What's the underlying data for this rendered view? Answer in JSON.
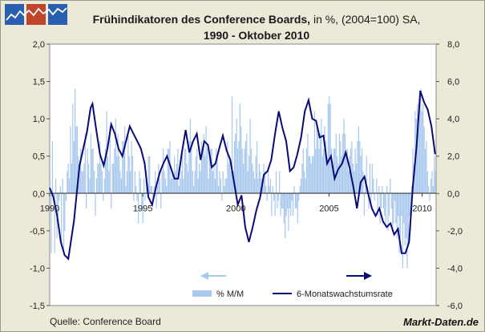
{
  "title_bold": "Frühindikatoren des Conference Boards,",
  "title_rest": " in %, (2004=100) SA,",
  "subtitle": "1990 - Oktober 2010",
  "source": "Quelle: Conference Board",
  "brand": "Markt-Daten.de",
  "colors": {
    "bar": "#a8c8ee",
    "line": "#0a0a78",
    "arrow_left": "#a8c8ee",
    "arrow_right": "#0a0a78",
    "plot_bg": "#ffffff",
    "logo_blue": "#2a5fb0",
    "logo_red": "#c0452b"
  },
  "chart_data": {
    "type": "bar+line",
    "x_start": 1990,
    "x_end": 2010.75,
    "xticks": [
      "1990",
      "1995",
      "2000",
      "2005",
      "2010"
    ],
    "yleft": {
      "ticks": [
        "2,0",
        "1,5",
        "1,0",
        "0,5",
        "0,0",
        "-0,5",
        "-1,0",
        "-1,5"
      ],
      "lim": [
        -1.5,
        2.0
      ]
    },
    "yright": {
      "ticks": [
        "8,0",
        "6,0",
        "4,0",
        "2,0",
        "0,0",
        "-2,0",
        "-4,0",
        "-6,0"
      ],
      "lim": [
        -6.0,
        8.0
      ]
    },
    "legend": [
      "% M/M",
      "6-Monatswachstumsrate"
    ],
    "series": [
      {
        "name": "% M/M",
        "axis": "left",
        "type": "bar",
        "values": [
          0.2,
          -0.8,
          0.7,
          -0.1,
          -0.8,
          0.2,
          -0.6,
          -0.3,
          -0.1,
          0.1,
          -0.7,
          0.2,
          -0.8,
          -0.5,
          -0.1,
          0.3,
          0.4,
          0.2,
          0.9,
          0.4,
          1.2,
          0.7,
          1.4,
          0.9,
          0.9,
          0.5,
          0.4,
          0.6,
          0.3,
          0.3,
          0.4,
          0.8,
          -0.2,
          0.6,
          0.4,
          0.2,
          0.8,
          0.6,
          0.6,
          0.3,
          -0.3,
          0.2,
          0.4,
          0.4,
          0.7,
          0.4,
          0.3,
          -0.1,
          0.2,
          0.6,
          1.1,
          0.5,
          0.3,
          0.9,
          -0.2,
          0.4,
          0.4,
          0.6,
          1.0,
          0.5,
          0.8,
          0.5,
          0.3,
          0.2,
          0.7,
          0.7,
          0.9,
          0.1,
          0.3,
          0.8,
          0.5,
          0.3,
          0.7,
          0.5,
          -0.1,
          0.3,
          0.1,
          -0.1,
          -0.4,
          0.3,
          0.2,
          -0.2,
          -0.4,
          0.2,
          -0.1,
          0.3,
          0.1,
          0.5,
          0.5,
          0.1,
          0.1,
          -0.1,
          0.1,
          0.3,
          -0.2,
          0.1,
          0.4,
          0.2,
          -0.2,
          0.3,
          0.6,
          0.3,
          0.2,
          0.1,
          0.6,
          0.6,
          0.7,
          0.2,
          0.3,
          0.2,
          0.5,
          0.3,
          0.4,
          0.6,
          0.1,
          0.2,
          0.3,
          0.6,
          0.2,
          0.6,
          0.6,
          0.4,
          0.3,
          0.7,
          1.0,
          0.7,
          0.3,
          0.1,
          0.3,
          0.5,
          0.6,
          0.2,
          0.4,
          0.3,
          0.7,
          0.6,
          0.8,
          0.5,
          0.9,
          0.6,
          0.2,
          0.5,
          0.6,
          0.6,
          0.3,
          0.4,
          0.2,
          0.6,
          0.5,
          0.1,
          0.3,
          0.2,
          -0.1,
          0.3,
          0.1,
          0.2,
          0.2,
          0.7,
          0.4,
          0.5,
          0.3,
          1.3,
          0.3,
          0.7,
          0.8,
          1.0,
          0.6,
          0.7,
          1.2,
          0.9,
          0.6,
          0.4,
          0.6,
          0.7,
          0.8,
          0.3,
          0.5,
          1.0,
          0.6,
          0.4,
          0.3,
          0.2,
          0.5,
          0.7,
          0.2,
          0.4,
          0.3,
          0.2,
          0.1,
          0.4,
          0.3,
          0.1,
          -0.1,
          0.3,
          0.1,
          0.2,
          -0.3,
          0.1,
          -0.1,
          -0.3,
          0.3,
          -0.2,
          -0.1,
          0.3,
          -0.3,
          -0.2,
          -0.2,
          -0.4,
          -0.6,
          -0.3,
          -0.2,
          -0.5,
          -0.2,
          -0.3,
          -0.1,
          -0.3,
          0.1,
          -0.2,
          -0.2,
          -0.4,
          -0.1,
          0.1,
          0.2,
          0.4,
          0.6,
          0.3,
          0.2,
          0.6,
          0.8,
          0.5,
          0.5,
          0.4,
          0.5,
          0.5,
          1.1,
          0.6,
          0.9,
          0.8,
          0.6,
          0.8,
          1.0,
          0.5,
          0.6,
          0.9,
          0.7,
          0.4,
          1.2,
          1.3,
          1.2,
          0.6,
          0.4,
          0.6,
          0.6,
          0.8,
          0.5,
          0.4,
          0.8,
          0.7,
          0.5,
          0.8,
          1.0,
          0.8,
          0.5,
          0.6,
          0.3,
          0.5,
          0.6,
          0.7,
          0.4,
          0.3,
          0.6,
          0.4,
          0.7,
          0.9,
          0.7,
          0.5,
          0.6,
          0.3,
          -0.3,
          0.2,
          0.5,
          0.1,
          -0.2,
          0.4,
          -0.1,
          0.4,
          0.2,
          -0.1,
          0.0,
          0.2,
          -0.3,
          0.1,
          -0.4,
          -0.2,
          0.1,
          -0.2,
          -0.3,
          -0.4,
          0.1,
          -0.5,
          -0.3,
          0.2,
          -0.2,
          -0.5,
          -0.4,
          -0.1,
          -0.4,
          -0.6,
          -0.3,
          -0.8,
          -0.6,
          -0.3,
          -1.0,
          -0.4,
          -0.7,
          -0.6,
          -1.0,
          -0.7,
          -0.3,
          -0.5,
          0.1,
          0.6,
          0.4,
          1.1,
          1.0,
          1.2,
          0.9,
          1.3,
          1.4,
          1.1,
          1.2,
          0.9,
          0.6,
          0.7,
          0.3,
          0.1,
          -0.1,
          0.2,
          0.3,
          0.1,
          0.5,
          0.3
        ]
      },
      {
        "name": "6-Monatswachstumsrate",
        "axis": "right",
        "type": "line",
        "x": [
          1990.0,
          1990.2,
          1990.4,
          1990.6,
          1990.8,
          1991.0,
          1991.3,
          1991.6,
          1992.0,
          1992.2,
          1992.3,
          1992.5,
          1992.7,
          1992.9,
          1993.1,
          1993.3,
          1993.5,
          1993.7,
          1993.9,
          1994.1,
          1994.3,
          1994.5,
          1994.7,
          1994.9,
          1995.1,
          1995.3,
          1995.5,
          1995.7,
          1995.9,
          1996.1,
          1996.3,
          1996.5,
          1996.7,
          1996.9,
          1997.1,
          1997.3,
          1997.5,
          1997.7,
          1997.9,
          1998.1,
          1998.3,
          1998.5,
          1998.7,
          1998.9,
          1999.1,
          1999.3,
          1999.5,
          1999.7,
          1999.9,
          2000.1,
          2000.3,
          2000.5,
          2000.7,
          2000.9,
          2001.1,
          2001.3,
          2001.5,
          2001.7,
          2001.9,
          2002.1,
          2002.3,
          2002.5,
          2002.7,
          2002.9,
          2003.1,
          2003.3,
          2003.5,
          2003.7,
          2003.9,
          2004.1,
          2004.3,
          2004.5,
          2004.7,
          2004.9,
          2005.1,
          2005.3,
          2005.5,
          2005.7,
          2005.9,
          2006.1,
          2006.3,
          2006.5,
          2006.7,
          2006.9,
          2007.1,
          2007.3,
          2007.5,
          2007.7,
          2007.9,
          2008.1,
          2008.3,
          2008.5,
          2008.7,
          2008.9,
          2009.1,
          2009.3,
          2009.5,
          2009.7,
          2009.9,
          2010.1,
          2010.3,
          2010.5,
          2010.7
        ],
        "values": [
          0.3,
          -0.2,
          -1.2,
          -2.6,
          -3.3,
          -3.5,
          -1.5,
          1.5,
          3.3,
          4.6,
          4.8,
          3.4,
          2.1,
          1.5,
          2.4,
          3.7,
          3.2,
          2.4,
          2.0,
          2.8,
          3.6,
          3.2,
          2.8,
          2.4,
          1.6,
          -0.2,
          -0.6,
          0.3,
          1.1,
          1.6,
          2.0,
          1.4,
          0.8,
          0.8,
          2.2,
          3.4,
          2.2,
          2.8,
          3.2,
          1.8,
          2.8,
          2.6,
          1.4,
          1.6,
          2.4,
          3.1,
          2.3,
          1.8,
          0.6,
          -0.6,
          -0.1,
          -1.8,
          -2.6,
          -1.8,
          -0.9,
          -0.2,
          1.0,
          1.2,
          1.8,
          3.2,
          4.4,
          3.5,
          2.8,
          1.2,
          1.4,
          2.1,
          3.0,
          4.4,
          5.0,
          4.0,
          3.9,
          3.0,
          3.1,
          1.6,
          2.0,
          0.8,
          1.3,
          1.6,
          2.2,
          1.4,
          0.4,
          -0.8,
          0.6,
          0.9,
          0.0,
          -0.8,
          -1.2,
          -0.8,
          -1.5,
          -1.8,
          -1.6,
          -2.2,
          -1.9,
          -3.2,
          -3.2,
          -2.6,
          0.4,
          2.5,
          5.5,
          4.9,
          4.5,
          3.6,
          2.1
        ]
      }
    ]
  }
}
